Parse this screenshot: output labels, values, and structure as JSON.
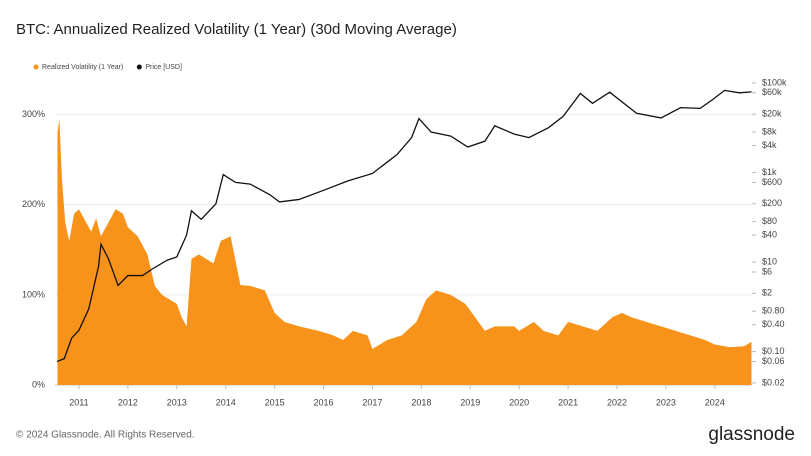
{
  "chart_data": {
    "type": "area-line",
    "title": "BTC: Annualized Realized Volatility (1 Year) (30d Moving Average)",
    "series": [
      {
        "name": "Realized Volatility (1 Year)",
        "color": "#f7931a",
        "kind": "area",
        "axis": "y",
        "x": [
          2010.56,
          2010.6,
          2010.65,
          2010.72,
          2010.8,
          2010.9,
          2011.0,
          2011.1,
          2011.25,
          2011.35,
          2011.45,
          2011.6,
          2011.75,
          2011.9,
          2012.0,
          2012.2,
          2012.4,
          2012.55,
          2012.7,
          2012.85,
          2013.0,
          2013.1,
          2013.2,
          2013.3,
          2013.45,
          2013.6,
          2013.75,
          2013.9,
          2014.1,
          2014.3,
          2014.5,
          2014.8,
          2015.0,
          2015.2,
          2015.5,
          2015.9,
          2016.2,
          2016.4,
          2016.6,
          2016.9,
          2017.0,
          2017.3,
          2017.6,
          2017.9,
          2018.1,
          2018.3,
          2018.6,
          2018.9,
          2019.1,
          2019.3,
          2019.5,
          2019.9,
          2020.0,
          2020.3,
          2020.5,
          2020.8,
          2021.0,
          2021.3,
          2021.6,
          2021.9,
          2022.1,
          2022.3,
          2022.6,
          2022.9,
          2023.2,
          2023.5,
          2023.8,
          2024.0,
          2024.3,
          2024.6,
          2024.75
        ],
        "values": [
          280,
          295,
          230,
          180,
          160,
          190,
          195,
          185,
          170,
          185,
          165,
          180,
          195,
          190,
          175,
          165,
          145,
          110,
          100,
          95,
          90,
          75,
          65,
          140,
          145,
          140,
          135,
          160,
          165,
          111,
          110,
          105,
          80,
          70,
          65,
          60,
          55,
          50,
          60,
          55,
          40,
          50,
          55,
          70,
          95,
          105,
          100,
          90,
          75,
          60,
          65,
          65,
          60,
          70,
          60,
          55,
          70,
          65,
          60,
          75,
          80,
          75,
          70,
          65,
          60,
          55,
          50,
          45,
          42,
          43,
          48
        ]
      },
      {
        "name": "Price [USD]",
        "color": "#111111",
        "kind": "line",
        "axis": "y2",
        "x": [
          2010.55,
          2010.7,
          2010.85,
          2011.0,
          2011.2,
          2011.4,
          2011.45,
          2011.6,
          2011.8,
          2012.0,
          2012.3,
          2012.5,
          2012.8,
          2013.0,
          2013.2,
          2013.3,
          2013.5,
          2013.8,
          2013.95,
          2014.2,
          2014.5,
          2014.9,
          2015.1,
          2015.5,
          2016.0,
          2016.5,
          2017.0,
          2017.5,
          2017.8,
          2017.95,
          2018.2,
          2018.6,
          2018.95,
          2019.3,
          2019.5,
          2019.9,
          2020.2,
          2020.6,
          2020.9,
          2021.25,
          2021.5,
          2021.85,
          2022.4,
          2022.9,
          2023.3,
          2023.7,
          2023.95,
          2024.2,
          2024.5,
          2024.75
        ],
        "values": [
          0.06,
          0.07,
          0.2,
          0.3,
          0.9,
          8,
          25,
          12,
          3,
          5,
          5,
          7,
          11,
          13,
          40,
          140,
          90,
          200,
          900,
          600,
          550,
          320,
          220,
          250,
          400,
          650,
          950,
          2500,
          6000,
          16000,
          8000,
          6500,
          3700,
          5000,
          11000,
          7200,
          6000,
          10000,
          18000,
          58000,
          35000,
          62000,
          21000,
          16500,
          28000,
          27000,
          42000,
          68000,
          60000,
          63000
        ]
      }
    ],
    "xlim": [
      2010.51,
      2024.76
    ],
    "xticks": [
      2011,
      2012,
      2013,
      2014,
      2015,
      2016,
      2017,
      2018,
      2019,
      2020,
      2021,
      2022,
      2023,
      2024
    ],
    "ylim": [
      0,
      344
    ],
    "yticks": [
      {
        "value": 0,
        "label": "0%"
      },
      {
        "value": 100,
        "label": "100%"
      },
      {
        "value": 200,
        "label": "200%"
      },
      {
        "value": 300,
        "label": "300%"
      }
    ],
    "y2lim": [
      0.018,
      150000
    ],
    "y2log": true,
    "y2ticks": [
      {
        "value": 0.02,
        "label": "$0.02"
      },
      {
        "value": 0.06,
        "label": "$0.06"
      },
      {
        "value": 0.1,
        "label": "$0.10"
      },
      {
        "value": 0.4,
        "label": "$0.40"
      },
      {
        "value": 0.8,
        "label": "$0.80"
      },
      {
        "value": 2,
        "label": "$2"
      },
      {
        "value": 6,
        "label": "$6"
      },
      {
        "value": 10,
        "label": "$10"
      },
      {
        "value": 40,
        "label": "$40"
      },
      {
        "value": 80,
        "label": "$80"
      },
      {
        "value": 200,
        "label": "$200"
      },
      {
        "value": 600,
        "label": "$600"
      },
      {
        "value": 1000,
        "label": "$1k"
      },
      {
        "value": 4000,
        "label": "$4k"
      },
      {
        "value": 8000,
        "label": "$8k"
      },
      {
        "value": 20000,
        "label": "$20k"
      },
      {
        "value": 60000,
        "label": "$60k"
      },
      {
        "value": 100000,
        "label": "$100k"
      }
    ],
    "grid": true,
    "legend": "top-left"
  },
  "footer": "© 2024 Glassnode. All Rights Reserved.",
  "logo": "glassnode"
}
